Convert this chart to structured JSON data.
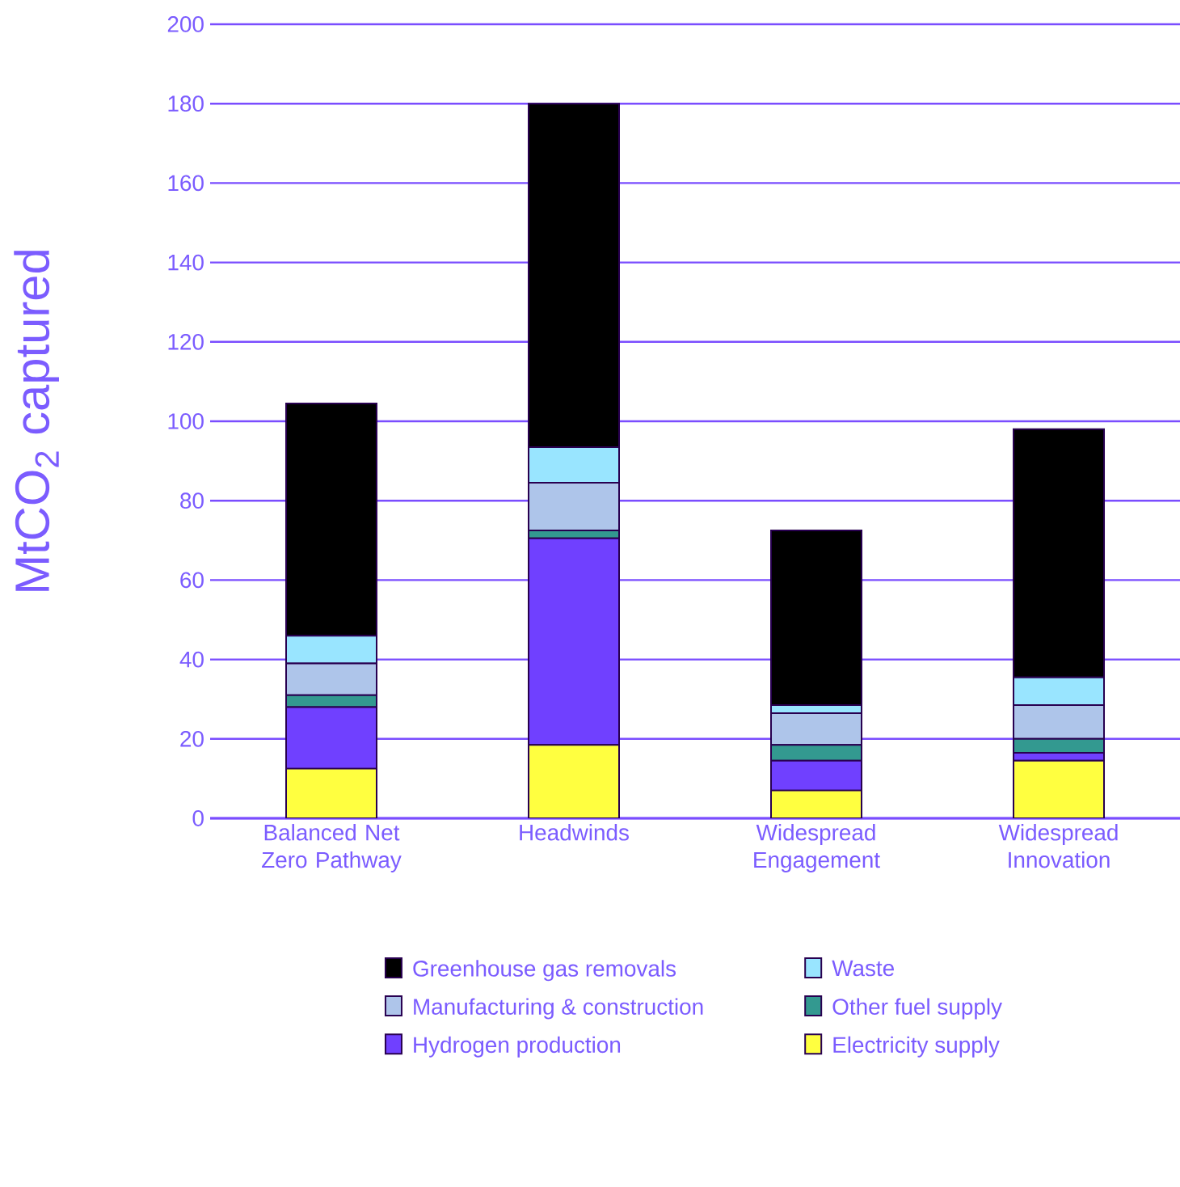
{
  "chart_data": {
    "type": "bar",
    "stacked": true,
    "ylabel": "MtCO$_{2}$ captured",
    "categories": [
      "Balanced Net Zero Pathway",
      "Headwinds",
      "Widespread Engagement",
      "Widespread Innovation"
    ],
    "series": [
      {
        "name": "Electricity supply",
        "color": "#ffff40",
        "values": [
          12.5,
          18.5,
          7,
          14.5
        ]
      },
      {
        "name": "Hydrogen production",
        "color": "#7040ff",
        "values": [
          15.5,
          52,
          7.5,
          2
        ]
      },
      {
        "name": "Other fuel supply",
        "color": "#339990",
        "values": [
          3,
          2,
          4,
          3.5
        ]
      },
      {
        "name": "Manufacturing & construction",
        "color": "#aec5ea",
        "values": [
          8,
          12,
          8,
          8.5
        ]
      },
      {
        "name": "Waste",
        "color": "#99e5ff",
        "values": [
          7,
          9,
          2,
          7
        ]
      },
      {
        "name": "Greenhouse gas removals",
        "color": "#000000",
        "values": [
          58.5,
          86.5,
          44,
          62.5
        ]
      }
    ],
    "ylim": [
      0,
      200
    ],
    "yticks": [
      0,
      20,
      40,
      60,
      80,
      100,
      120,
      140,
      160,
      180,
      200
    ],
    "grid": "y",
    "legend": "bottom"
  }
}
